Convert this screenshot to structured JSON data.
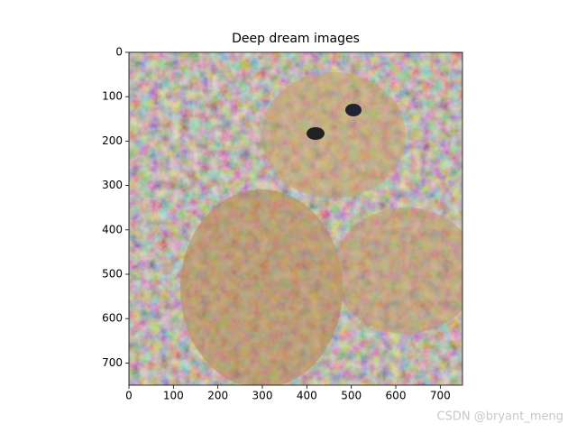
{
  "chart_data": {
    "type": "image",
    "title": "Deep dream images",
    "xlim": [
      0,
      750
    ],
    "ylim": [
      750,
      0
    ],
    "xticks": [
      0,
      100,
      200,
      300,
      400,
      500,
      600,
      700
    ],
    "yticks": [
      0,
      100,
      200,
      300,
      400,
      500,
      600,
      700
    ]
  },
  "watermark": "CSDN @bryant_meng"
}
